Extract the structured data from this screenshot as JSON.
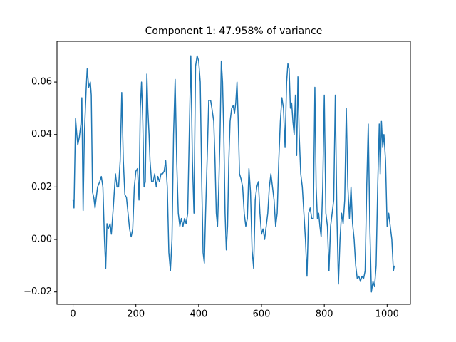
{
  "chart_data": {
    "type": "line",
    "title": "Component 1: 47.958% of variance",
    "color": "#1f77b4",
    "x": [
      0,
      3,
      8,
      12,
      15,
      20,
      25,
      28,
      32,
      36,
      42,
      45,
      50,
      55,
      58,
      62,
      66,
      70,
      78,
      85,
      90,
      95,
      100,
      104,
      108,
      112,
      118,
      122,
      128,
      135,
      140,
      145,
      150,
      155,
      160,
      165,
      170,
      175,
      180,
      185,
      190,
      195,
      200,
      205,
      210,
      214,
      218,
      222,
      226,
      230,
      235,
      238,
      242,
      245,
      250,
      255,
      260,
      265,
      270,
      275,
      280,
      285,
      290,
      295,
      300,
      305,
      310,
      315,
      320,
      325,
      330,
      335,
      340,
      345,
      350,
      355,
      360,
      365,
      370,
      375,
      380,
      385,
      390,
      395,
      400,
      405,
      410,
      414,
      418,
      422,
      428,
      432,
      438,
      442,
      448,
      452,
      456,
      460,
      464,
      468,
      472,
      476,
      480,
      484,
      488,
      492,
      496,
      500,
      505,
      510,
      514,
      518,
      522,
      526,
      530,
      535,
      540,
      545,
      550,
      555,
      560,
      565,
      570,
      575,
      580,
      585,
      590,
      595,
      600,
      605,
      610,
      615,
      620,
      625,
      630,
      635,
      640,
      645,
      650,
      655,
      660,
      665,
      670,
      675,
      680,
      684,
      688,
      692,
      696,
      700,
      704,
      708,
      712,
      716,
      720,
      725,
      730,
      735,
      740,
      745,
      750,
      755,
      760,
      765,
      770,
      774,
      778,
      782,
      786,
      790,
      795,
      800,
      805,
      810,
      815,
      820,
      825,
      830,
      835,
      840,
      845,
      850,
      855,
      860,
      865,
      870,
      875,
      880,
      885,
      890,
      895,
      900,
      905,
      910,
      915,
      920,
      925,
      930,
      935,
      940,
      945,
      950,
      955,
      960,
      965,
      970,
      975,
      978,
      982,
      986,
      990,
      995,
      1000,
      1005,
      1010,
      1015,
      1020,
      1023
    ],
    "values": [
      0.015,
      0.012,
      0.046,
      0.04,
      0.036,
      0.039,
      0.044,
      0.054,
      0.011,
      0.04,
      0.058,
      0.065,
      0.058,
      0.06,
      0.055,
      0.018,
      0.016,
      0.012,
      0.02,
      0.022,
      0.024,
      0.02,
      0.0,
      -0.011,
      0.006,
      0.004,
      0.006,
      0.002,
      0.012,
      0.025,
      0.02,
      0.02,
      0.03,
      0.056,
      0.03,
      0.017,
      0.016,
      0.01,
      0.004,
      0.001,
      0.004,
      0.02,
      0.026,
      0.027,
      0.015,
      0.05,
      0.06,
      0.045,
      0.02,
      0.022,
      0.063,
      0.05,
      0.04,
      0.03,
      0.022,
      0.022,
      0.025,
      0.02,
      0.024,
      0.022,
      0.025,
      0.025,
      0.026,
      0.03,
      0.02,
      -0.005,
      -0.012,
      0.0,
      0.04,
      0.061,
      0.03,
      0.01,
      0.005,
      0.008,
      0.005,
      0.008,
      0.006,
      0.01,
      0.04,
      0.07,
      0.03,
      0.01,
      0.066,
      0.07,
      0.068,
      0.06,
      0.02,
      -0.005,
      -0.009,
      0.01,
      0.035,
      0.053,
      0.053,
      0.05,
      0.045,
      0.03,
      0.01,
      0.005,
      0.02,
      0.04,
      0.068,
      0.06,
      0.04,
      0.01,
      -0.004,
      0.005,
      0.03,
      0.045,
      0.05,
      0.051,
      0.048,
      0.052,
      0.06,
      0.045,
      0.025,
      0.023,
      0.02,
      0.01,
      0.005,
      0.008,
      0.027,
      0.018,
      -0.004,
      -0.011,
      0.015,
      0.02,
      0.022,
      0.01,
      0.002,
      0.004,
      0.0,
      0.005,
      0.01,
      0.02,
      0.025,
      0.02,
      0.015,
      0.005,
      0.01,
      0.03,
      0.045,
      0.054,
      0.05,
      0.035,
      0.06,
      0.067,
      0.065,
      0.05,
      0.052,
      0.045,
      0.04,
      0.055,
      0.032,
      0.062,
      0.04,
      0.025,
      0.02,
      0.01,
      0.0,
      -0.014,
      0.01,
      0.012,
      0.008,
      0.008,
      0.058,
      0.02,
      0.008,
      0.01,
      0.005,
      0.001,
      0.02,
      0.055,
      0.01,
      0.005,
      -0.012,
      0.005,
      0.01,
      0.015,
      0.055,
      0.01,
      -0.017,
      0.0,
      0.01,
      0.006,
      0.015,
      0.05,
      0.02,
      0.008,
      0.02,
      0.006,
      0.0,
      -0.01,
      -0.015,
      -0.014,
      -0.016,
      -0.014,
      -0.015,
      -0.012,
      0.02,
      0.044,
      0.005,
      -0.02,
      -0.016,
      -0.018,
      -0.01,
      0.02,
      0.044,
      0.025,
      0.045,
      0.035,
      0.04,
      0.03,
      0.005,
      0.01,
      0.005,
      0.0,
      -0.012,
      -0.01
    ],
    "xlim": [
      -51.15,
      1074.15
    ],
    "xticks": [
      0,
      200,
      400,
      600,
      800,
      1000
    ],
    "ylim": [
      -0.0247,
      0.0755
    ],
    "yticks": [
      {
        "value": -0.02,
        "label": "−0.02"
      },
      {
        "value": 0,
        "label": "0.00"
      },
      {
        "value": 0.02,
        "label": "0.02"
      },
      {
        "value": 0.04,
        "label": "0.04"
      },
      {
        "value": 0.06,
        "label": "0.06"
      }
    ]
  }
}
